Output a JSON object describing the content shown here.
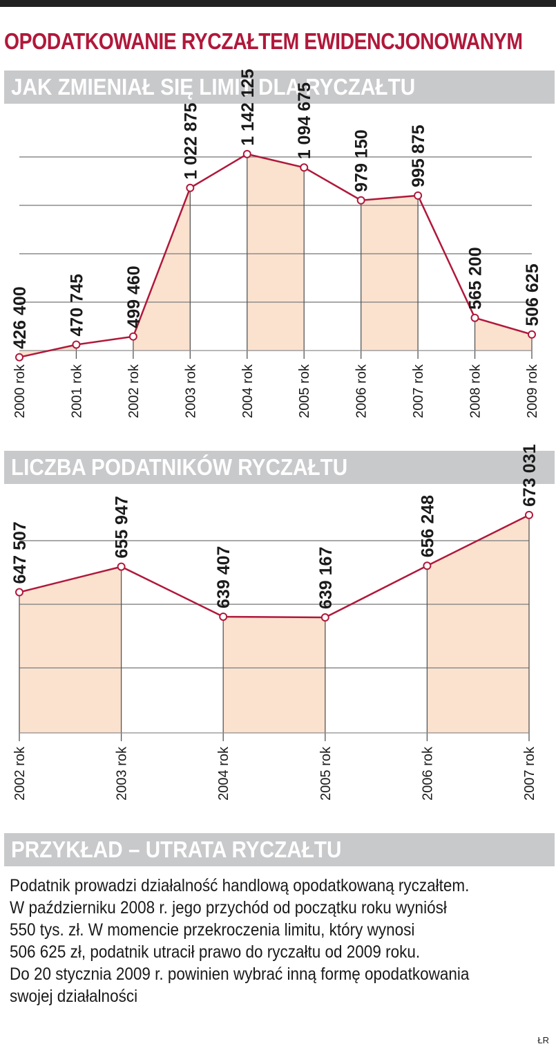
{
  "main_title": "OPODATKOWANIE RYCZAŁTEM EWIDENCJONOWANYM",
  "section1_title": "JAK ZMIENIAŁ SIĘ LIMIT DLA RYCZAŁTU",
  "section2_title": "LICZBA PODATNIKÓW RYCZAŁTU",
  "section3_title": "PRZYKŁAD – UTRATA RYCZAŁTU",
  "example_lines": [
    "Podatnik prowadzi działalność handlową opodatkowaną ryczałtem.",
    "W październiku 2008 r. jego przychód od początku roku wyniósł",
    "550 tys. zł. W momencie przekroczenia limitu, który wynosi",
    "506 625 zł, podatnik utracił prawo do ryczałtu od 2009 roku.",
    "Do 20 stycznia 2009 r. powinien wybrać inną formę opodatkowania",
    "swojej działalności"
  ],
  "credit": "ŁR",
  "colors": {
    "title": "#b0183a",
    "line": "#b0183a",
    "fill": "#fbe2cf",
    "section_bg": "#c8c9cb",
    "grid": "#8c8c8c"
  },
  "chart_data": [
    {
      "type": "area",
      "title": "JAK ZMIENIAŁ SIĘ LIMIT DLA RYCZAŁTU",
      "categories": [
        "2000 rok",
        "2001 rok",
        "2002 rok",
        "2003 rok",
        "2004 rok",
        "2005 rok",
        "2006 rok",
        "2007 rok",
        "2008 rok",
        "2009 rok"
      ],
      "values": [
        426400,
        470745,
        499460,
        1022875,
        1142125,
        1094675,
        979150,
        995875,
        565200,
        506625
      ],
      "value_labels": [
        "426 400",
        "470 745",
        "499 460",
        "1 022 875",
        "1 142 125",
        "1 094 675",
        "979 150",
        "995 875",
        "565 200",
        "506 625"
      ],
      "ylim": [
        450000,
        1300000
      ],
      "shaded_bands": [
        [
          0,
          1
        ],
        [
          2,
          3
        ],
        [
          4,
          5
        ],
        [
          6,
          7
        ],
        [
          8,
          9
        ]
      ],
      "grid": true
    },
    {
      "type": "area",
      "title": "LICZBA PODATNIKÓW RYCZAŁTU",
      "categories": [
        "2002 rok",
        "2003 rok",
        "2004 rok",
        "2005 rok",
        "2006 rok",
        "2007 rok"
      ],
      "values": [
        647507,
        655947,
        639407,
        639167,
        656248,
        673031
      ],
      "value_labels": [
        "647 507",
        "655 947",
        "639 407",
        "639 167",
        "656 248",
        "673 031"
      ],
      "ylim": [
        601000,
        681000
      ],
      "shaded_bands": [
        [
          0,
          1
        ],
        [
          2,
          3
        ],
        [
          4,
          5
        ]
      ],
      "grid": true
    }
  ]
}
